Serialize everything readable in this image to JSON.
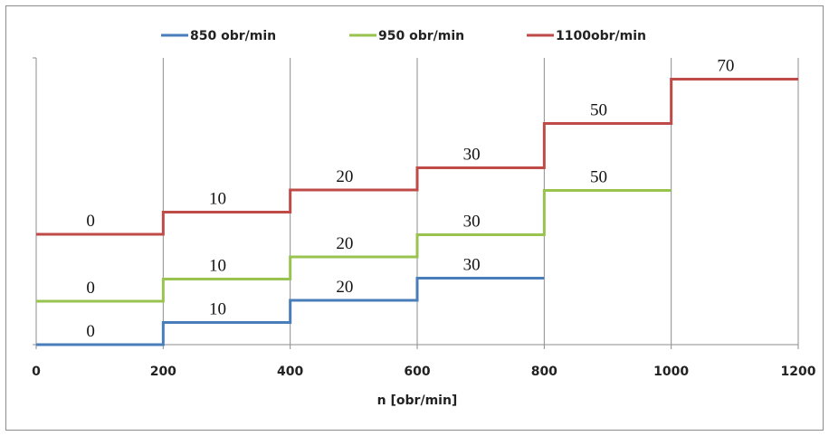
{
  "chart_data": {
    "type": "line",
    "subtype": "step",
    "title": "",
    "xlabel": "n [obr/min]",
    "ylabel": "",
    "xlim": [
      0,
      1200
    ],
    "x_ticks": [
      0,
      200,
      400,
      600,
      800,
      1000,
      1200
    ],
    "grid": "vertical",
    "legend_position": "top",
    "series": [
      {
        "name": "850 obr/min",
        "color": "#4a7ebb",
        "steps": [
          {
            "x_start": 0,
            "x_end": 200,
            "value": 0
          },
          {
            "x_start": 200,
            "x_end": 400,
            "value": 10
          },
          {
            "x_start": 400,
            "x_end": 600,
            "value": 20
          },
          {
            "x_start": 600,
            "x_end": 800,
            "value": 30
          }
        ]
      },
      {
        "name": "950 obr/min",
        "color": "#98c34f",
        "steps": [
          {
            "x_start": 0,
            "x_end": 200,
            "value": 0
          },
          {
            "x_start": 200,
            "x_end": 400,
            "value": 10
          },
          {
            "x_start": 400,
            "x_end": 600,
            "value": 20
          },
          {
            "x_start": 600,
            "x_end": 800,
            "value": 30
          },
          {
            "x_start": 800,
            "x_end": 1000,
            "value": 50
          }
        ]
      },
      {
        "name": "1100obr/min",
        "color": "#be4b48",
        "steps": [
          {
            "x_start": 0,
            "x_end": 200,
            "value": 0
          },
          {
            "x_start": 200,
            "x_end": 400,
            "value": 10
          },
          {
            "x_start": 400,
            "x_end": 600,
            "value": 20
          },
          {
            "x_start": 600,
            "x_end": 800,
            "value": 30
          },
          {
            "x_start": 800,
            "x_end": 1000,
            "value": 50
          },
          {
            "x_start": 1000,
            "x_end": 1200,
            "value": 70
          }
        ]
      }
    ]
  }
}
